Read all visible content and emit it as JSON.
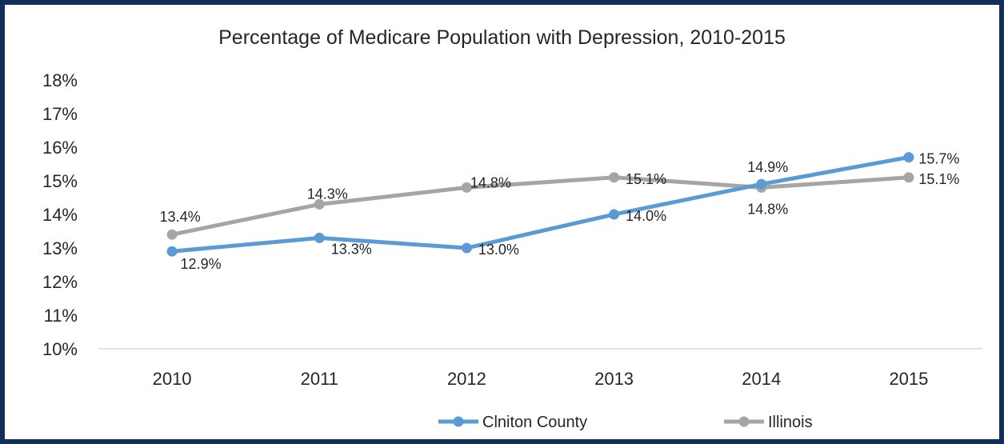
{
  "chart_data": {
    "type": "line",
    "title": "Percentage of Medicare Population with Depression, 2010-2015",
    "xlabel": "",
    "ylabel": "",
    "categories": [
      "2010",
      "2011",
      "2012",
      "2013",
      "2014",
      "2015"
    ],
    "yticks": [
      "10%",
      "11%",
      "12%",
      "13%",
      "14%",
      "15%",
      "16%",
      "17%",
      "18%"
    ],
    "ylim": [
      10,
      18
    ],
    "grid": false,
    "legend_position": "bottom",
    "series": [
      {
        "name": "Clniton County",
        "color": "#5b9bd5",
        "values": [
          12.9,
          13.3,
          13.0,
          14.0,
          14.9,
          15.7
        ],
        "labels": [
          "12.9%",
          "13.3%",
          "13.0%",
          "14.0%",
          "14.9%",
          "15.7%"
        ]
      },
      {
        "name": "Illinois",
        "color": "#a5a5a5",
        "values": [
          13.4,
          14.3,
          14.8,
          15.1,
          14.8,
          15.1
        ],
        "labels": [
          "13.4%",
          "14.3%",
          "14.8%",
          "15.1%",
          "14.8%",
          "15.1%"
        ]
      }
    ]
  }
}
